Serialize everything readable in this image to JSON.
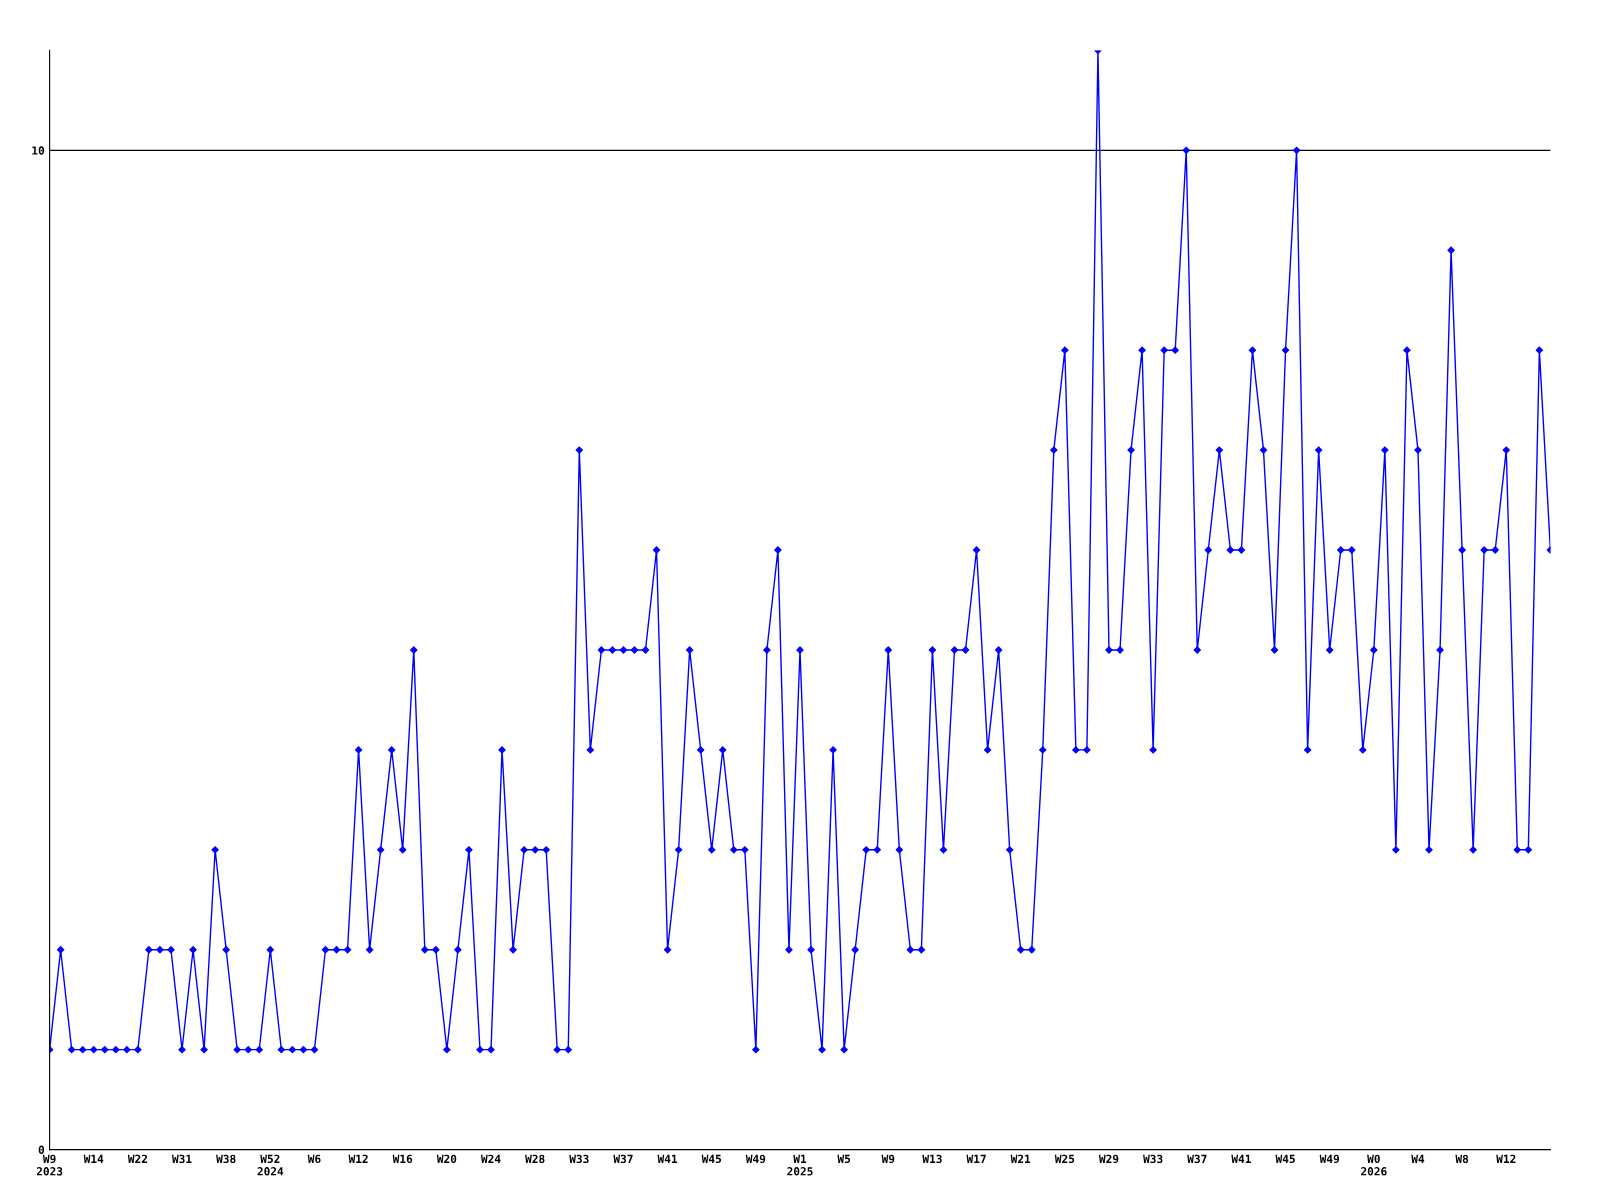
{
  "chart_data": {
    "type": "line",
    "categories": [
      "W9\n2023",
      null,
      null,
      null,
      "W14",
      null,
      null,
      null,
      "W22",
      null,
      null,
      null,
      "W31",
      null,
      null,
      null,
      "W38",
      null,
      null,
      null,
      "W52\n2024",
      null,
      null,
      null,
      "W6",
      null,
      null,
      null,
      "W12",
      null,
      null,
      null,
      "W16",
      null,
      null,
      null,
      "W20",
      null,
      null,
      null,
      "W24",
      null,
      null,
      null,
      "W28",
      null,
      null,
      null,
      "W33",
      null,
      null,
      null,
      "W37",
      null,
      null,
      null,
      "W41",
      null,
      null,
      null,
      "W45",
      null,
      null,
      null,
      "W49",
      null,
      null,
      null,
      "W1\n2025",
      null,
      null,
      null,
      "W5",
      null,
      null,
      null,
      "W9",
      null,
      null,
      null,
      "W13",
      null,
      null,
      null,
      "W17",
      null,
      null,
      null,
      "W21",
      null,
      null,
      null,
      "W25",
      null,
      null,
      null,
      "W29",
      null,
      null,
      null,
      "W33",
      null,
      null,
      null,
      "W37",
      null,
      null,
      null,
      "W41",
      null,
      null,
      null,
      "W45",
      null,
      null,
      null,
      "W49",
      null,
      null,
      null,
      "W0\n2026",
      null,
      null,
      null,
      "W4",
      null,
      null,
      null,
      "W8",
      null,
      null,
      null,
      "W12",
      null,
      null,
      null,
      null
    ],
    "series": [
      {
        "color": "#0000ff",
        "values": [
          1,
          2,
          1,
          1,
          1,
          1,
          1,
          1,
          1,
          2,
          2,
          2,
          1,
          2,
          1,
          3,
          2,
          1,
          1,
          1,
          2,
          1,
          1,
          1,
          1,
          2,
          2,
          2,
          4,
          2,
          3,
          4,
          3,
          5,
          2,
          2,
          1,
          2,
          3,
          1,
          1,
          4,
          2,
          3,
          3,
          3,
          1,
          1,
          7,
          4,
          5,
          5,
          5,
          5,
          5,
          6,
          2,
          3,
          5,
          4,
          3,
          4,
          3,
          3,
          1,
          5,
          6,
          2,
          5,
          2,
          1,
          4,
          1,
          2,
          3,
          3,
          5,
          3,
          2,
          2,
          5,
          3,
          5,
          5,
          6,
          4,
          5,
          3,
          2,
          2,
          4,
          7,
          8,
          4,
          4,
          11,
          5,
          5,
          7,
          8,
          4,
          8,
          8,
          10,
          5,
          6,
          7,
          6,
          6,
          8,
          7,
          5,
          8,
          10,
          4,
          7,
          5,
          6,
          6,
          4,
          5,
          7,
          3,
          8,
          7,
          3,
          5,
          9,
          6,
          3,
          6,
          6,
          7,
          3,
          3,
          8,
          6
        ]
      }
    ],
    "ylim": [
      0,
      11
    ],
    "yticks": [
      0,
      10
    ],
    "grid": "y",
    "marker": "diamond",
    "line_style": "solid",
    "legend": false
  }
}
